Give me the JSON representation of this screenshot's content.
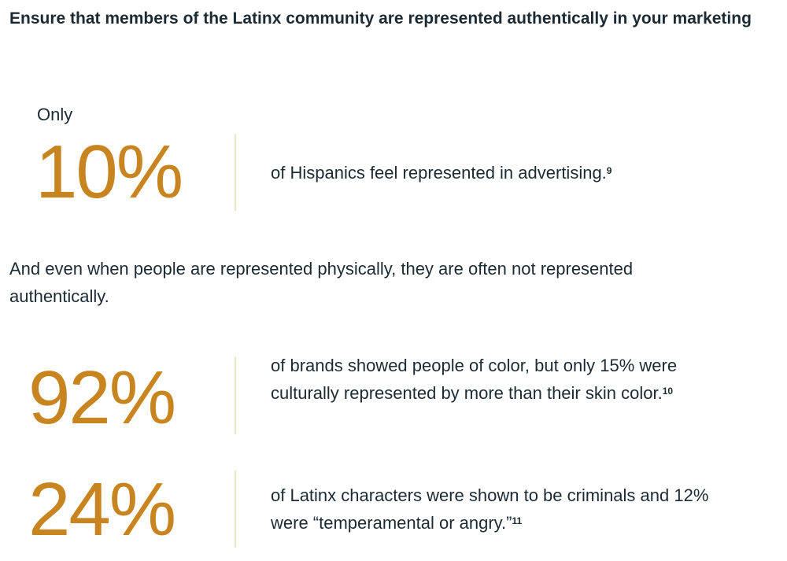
{
  "heading": "Ensure that members of the Latinx community are represented authentically in your marketing",
  "only_label": "Only",
  "stats": [
    {
      "value": "10%",
      "text": "of Hispanics feel represented in advertising.",
      "footnote": "9"
    },
    {
      "value": "92%",
      "text": "of brands showed people of color, but only 15% were culturally represented by more than their skin color.",
      "footnote": "10"
    },
    {
      "value": "24%",
      "text": "of Latinx characters were shown to be criminals and 12% were “temperamental or angry.”",
      "footnote": "11"
    }
  ],
  "paragraph": "And even when people are represented physically, they are often not represented authentically.",
  "colors": {
    "accent": "#c8841f",
    "text": "#1c2b33",
    "divider": "#f3e4c2"
  }
}
